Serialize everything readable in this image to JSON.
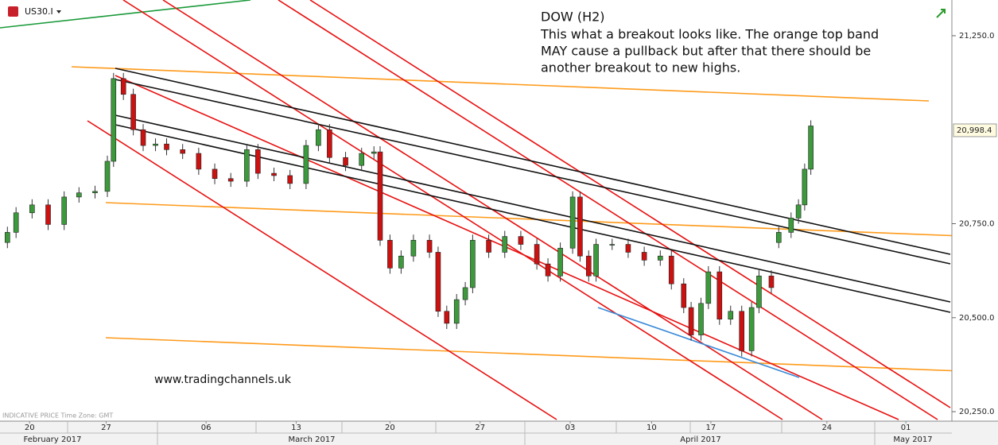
{
  "chart_data": {
    "type": "candlestick",
    "symbol": "US30.I",
    "title": "DOW (H2)",
    "annotation": [
      "This what a breakout looks like. The orange top band",
      "MAY cause a pullback but after that there should be",
      "another breakout to new highs."
    ],
    "watermark": "www.tradingchannels.uk",
    "footer": "INDICATIVE PRICE   Time Zone: GMT",
    "month_labels": [
      "February 2017",
      "March 2017",
      "April 2017",
      "May 2017"
    ],
    "xlim": [
      -3,
      74
    ],
    "ylim": [
      20229,
      21345
    ],
    "xticks": [
      {
        "value": -0.6,
        "label": "20"
      },
      {
        "value": 5.6,
        "label": "27"
      },
      {
        "value": 13.7,
        "label": "06"
      },
      {
        "value": 21.0,
        "label": "13"
      },
      {
        "value": 28.6,
        "label": "20"
      },
      {
        "value": 35.9,
        "label": "27"
      },
      {
        "value": 43.2,
        "label": "03"
      },
      {
        "value": 49.8,
        "label": "10"
      },
      {
        "value": 54.6,
        "label": "17"
      },
      {
        "value": 64.0,
        "label": "24"
      },
      {
        "value": 70.4,
        "label": "01"
      }
    ],
    "yticks": [
      {
        "value": 20250,
        "label": "20,250.0"
      },
      {
        "value": 20500,
        "label": "20,500.0"
      },
      {
        "value": 20750,
        "label": "20,750.0"
      },
      {
        "value": 21250,
        "label": "21,250.0"
      }
    ],
    "last_price": {
      "value": 20998.4,
      "label": "20,998.4"
    },
    "up_color": "#3c9a3c",
    "down_color": "#cc1111",
    "series": [
      {
        "x": [
          -2.4,
          -1.7,
          -0.4,
          0.9,
          2.2,
          3.4,
          4.7,
          5.7,
          6.2,
          7.0,
          7.8,
          8.6,
          9.6,
          10.5,
          11.8,
          13.1,
          14.4,
          15.7,
          17.0,
          17.9,
          19.2,
          20.5,
          21.8,
          22.8,
          23.7,
          25.0,
          26.3,
          27.3,
          27.8,
          28.6,
          29.5,
          30.5,
          31.8,
          32.5,
          33.2,
          34.0,
          34.7,
          35.3,
          36.6,
          37.9,
          39.2,
          40.5,
          41.4,
          42.4,
          43.4,
          44.0,
          44.7,
          45.3,
          46.6,
          47.9,
          49.2,
          50.5,
          51.4,
          52.4,
          53.0,
          53.8,
          54.4,
          55.3,
          56.2,
          57.1,
          57.9,
          58.5,
          59.5,
          60.1,
          61.1,
          61.7,
          62.2,
          62.7
        ],
        "open": [
          20700,
          20727,
          20779,
          20800,
          20748,
          20821,
          20832,
          20836,
          20916,
          21136,
          21094,
          21000,
          20958,
          20962,
          20947,
          20937,
          20895,
          20870,
          20863,
          20947,
          20884,
          20878,
          20857,
          20958,
          21000,
          20926,
          20905,
          20937,
          20941,
          20706,
          20632,
          20664,
          20706,
          20674,
          20517,
          20485,
          20548,
          20580,
          20706,
          20674,
          20716,
          20695,
          20643,
          20611,
          20685,
          20821,
          20664,
          20611,
          20695,
          20695,
          20674,
          20653,
          20664,
          20590,
          20527,
          20454,
          20538,
          20622,
          20496,
          20517,
          20412,
          20527,
          20611,
          20700,
          20727,
          20765,
          20800,
          20895
        ],
        "high": [
          20742,
          20794,
          20815,
          20815,
          20836,
          20847,
          20851,
          20931,
          21151,
          21151,
          21109,
          21015,
          20977,
          20977,
          20962,
          20952,
          20910,
          20885,
          20962,
          20962,
          20899,
          20893,
          20973,
          21015,
          21015,
          20941,
          20952,
          20956,
          20956,
          20721,
          20679,
          20721,
          20721,
          20689,
          20532,
          20563,
          20595,
          20721,
          20721,
          20731,
          20731,
          20710,
          20658,
          20700,
          20836,
          20836,
          20679,
          20710,
          20710,
          20710,
          20689,
          20679,
          20679,
          20605,
          20542,
          20553,
          20637,
          20637,
          20532,
          20532,
          20542,
          20626,
          20626,
          20742,
          20780,
          20815,
          20910,
          21025
        ],
        "low": [
          20685,
          20712,
          20764,
          20733,
          20733,
          20806,
          20817,
          20821,
          20901,
          21079,
          20985,
          20943,
          20943,
          20932,
          20922,
          20880,
          20855,
          20848,
          20848,
          20869,
          20863,
          20842,
          20842,
          20943,
          20911,
          20890,
          20890,
          20922,
          20691,
          20617,
          20617,
          20649,
          20659,
          20502,
          20470,
          20470,
          20533,
          20565,
          20659,
          20659,
          20680,
          20628,
          20596,
          20596,
          20670,
          20649,
          20596,
          20596,
          20680,
          20659,
          20638,
          20638,
          20575,
          20512,
          20439,
          20439,
          20523,
          20481,
          20481,
          20397,
          20397,
          20512,
          20565,
          20685,
          20712,
          20750,
          20785,
          20880
        ],
        "close": [
          20727,
          20779,
          20800,
          20748,
          20821,
          20832,
          20836,
          20916,
          21136,
          21094,
          21000,
          20958,
          20962,
          20947,
          20937,
          20895,
          20870,
          20863,
          20947,
          20884,
          20878,
          20857,
          20958,
          21000,
          20926,
          20905,
          20937,
          20941,
          20706,
          20632,
          20664,
          20706,
          20674,
          20517,
          20485,
          20548,
          20580,
          20706,
          20674,
          20716,
          20695,
          20643,
          20611,
          20685,
          20821,
          20664,
          20611,
          20695,
          20695,
          20674,
          20653,
          20664,
          20590,
          20527,
          20454,
          20538,
          20622,
          20496,
          20517,
          20412,
          20527,
          20611,
          20580,
          20727,
          20765,
          20800,
          20895,
          21010
        ]
      }
    ]
  }
}
